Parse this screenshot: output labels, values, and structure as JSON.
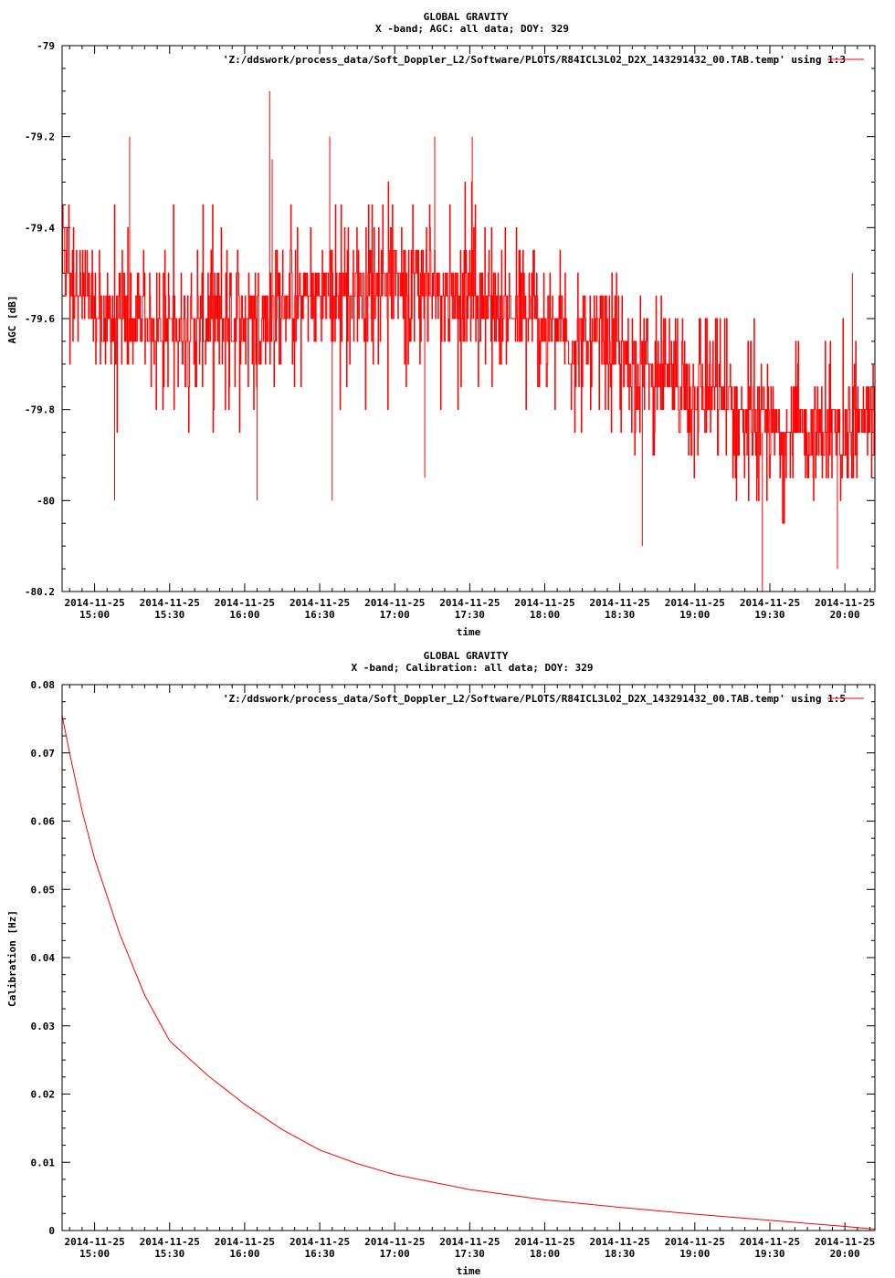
{
  "chart_data": [
    {
      "type": "line",
      "title": "GLOBAL GRAVITY",
      "subtitle": "X -band; AGC: all data; DOY: 329",
      "xlabel": "time",
      "ylabel": "AGC [dB]",
      "ylim": [
        -80.2,
        -79
      ],
      "xlim": [
        "2014-11-25 14:47",
        "2014-11-25 20:12"
      ],
      "yticks": [
        {
          "value": -79,
          "label": "-79"
        },
        {
          "value": -79.2,
          "label": "-79.2"
        },
        {
          "value": -79.4,
          "label": "-79.4"
        },
        {
          "value": -79.6,
          "label": "-79.6"
        },
        {
          "value": -79.8,
          "label": "-79.8"
        },
        {
          "value": -80,
          "label": "-80"
        },
        {
          "value": -80.2,
          "label": "-80.2"
        }
      ],
      "xticks": [
        {
          "value": "2014-11-25 15:00",
          "date": "2014-11-25",
          "time": "15:00"
        },
        {
          "value": "2014-11-25 15:30",
          "date": "2014-11-25",
          "time": "15:30"
        },
        {
          "value": "2014-11-25 16:00",
          "date": "2014-11-25",
          "time": "16:00"
        },
        {
          "value": "2014-11-25 16:30",
          "date": "2014-11-25",
          "time": "16:30"
        },
        {
          "value": "2014-11-25 17:00",
          "date": "2014-11-25",
          "time": "17:00"
        },
        {
          "value": "2014-11-25 17:30",
          "date": "2014-11-25",
          "time": "17:30"
        },
        {
          "value": "2014-11-25 18:00",
          "date": "2014-11-25",
          "time": "18:00"
        },
        {
          "value": "2014-11-25 18:30",
          "date": "2014-11-25",
          "time": "18:30"
        },
        {
          "value": "2014-11-25 19:00",
          "date": "2014-11-25",
          "time": "19:00"
        },
        {
          "value": "2014-11-25 19:30",
          "date": "2014-11-25",
          "time": "19:30"
        },
        {
          "value": "2014-11-25 20:00",
          "date": "2014-11-25",
          "time": "20:00"
        }
      ],
      "legend": "top-right",
      "grid": false,
      "series": [
        {
          "name": "'Z:/ddswork/process_data/Soft_Doppler_L2/Software/PLOTS/R84ICL3L02_D2X_143291432_00.TAB.temp' using 1:3",
          "color": "#ff0000",
          "x": [
            "2014-11-25 14:47",
            "2014-11-25 15:00",
            "2014-11-25 15:30",
            "2014-11-25 16:00",
            "2014-11-25 16:30",
            "2014-11-25 17:00",
            "2014-11-25 17:30",
            "2014-11-25 18:00",
            "2014-11-25 18:30",
            "2014-11-25 19:00",
            "2014-11-25 19:30",
            "2014-11-25 20:00",
            "2014-11-25 20:12"
          ],
          "y": [
            -79.45,
            -79.6,
            -79.62,
            -79.6,
            -79.55,
            -79.5,
            -79.55,
            -79.62,
            -79.68,
            -79.75,
            -79.85,
            -79.85,
            -79.8
          ],
          "y_low": [
            -79.8,
            -79.85,
            -79.85,
            -79.85,
            -79.8,
            -79.8,
            -79.8,
            -79.85,
            -79.9,
            -79.95,
            -80.05,
            -80.05,
            -79.95
          ],
          "y_high": [
            -79.3,
            -79.3,
            -79.35,
            -79.35,
            -79.3,
            -79.3,
            -79.3,
            -79.4,
            -79.5,
            -79.55,
            -79.6,
            -79.6,
            -79.6
          ],
          "spikes": [
            {
              "x": "2014-11-25 14:59",
              "y": -79.5
            },
            {
              "x": "2014-11-25 15:08",
              "y": -80
            },
            {
              "x": "2014-11-25 15:14",
              "y": -79.2
            },
            {
              "x": "2014-11-25 16:05",
              "y": -80
            },
            {
              "x": "2014-11-25 16:10",
              "y": -79.1
            },
            {
              "x": "2014-11-25 16:11",
              "y": -79.25
            },
            {
              "x": "2014-11-25 16:34",
              "y": -79.2
            },
            {
              "x": "2014-11-25 16:35",
              "y": -80
            },
            {
              "x": "2014-11-25 17:12",
              "y": -79.95
            },
            {
              "x": "2014-11-25 17:16",
              "y": -79.2
            },
            {
              "x": "2014-11-25 17:31",
              "y": -79.2
            },
            {
              "x": "2014-11-25 18:39",
              "y": -80.1
            },
            {
              "x": "2014-11-25 19:27",
              "y": -80.2
            },
            {
              "x": "2014-11-25 19:57",
              "y": -80.15
            },
            {
              "x": "2014-11-25 20:03",
              "y": -79.5
            }
          ]
        }
      ]
    },
    {
      "type": "line",
      "title": "GLOBAL GRAVITY",
      "subtitle": "X -band; Calibration: all data; DOY: 329",
      "xlabel": "time",
      "ylabel": "Calibration [Hz]",
      "ylim": [
        0,
        0.08
      ],
      "xlim": [
        "2014-11-25 14:47",
        "2014-11-25 20:12"
      ],
      "yticks": [
        {
          "value": 0,
          "label": "0"
        },
        {
          "value": 0.01,
          "label": "0.01"
        },
        {
          "value": 0.02,
          "label": "0.02"
        },
        {
          "value": 0.03,
          "label": "0.03"
        },
        {
          "value": 0.04,
          "label": "0.04"
        },
        {
          "value": 0.05,
          "label": "0.05"
        },
        {
          "value": 0.06,
          "label": "0.06"
        },
        {
          "value": 0.07,
          "label": "0.07"
        },
        {
          "value": 0.08,
          "label": "0.08"
        }
      ],
      "xticks": [
        {
          "value": "2014-11-25 15:00",
          "date": "2014-11-25",
          "time": "15:00"
        },
        {
          "value": "2014-11-25 15:30",
          "date": "2014-11-25",
          "time": "15:30"
        },
        {
          "value": "2014-11-25 16:00",
          "date": "2014-11-25",
          "time": "16:00"
        },
        {
          "value": "2014-11-25 16:30",
          "date": "2014-11-25",
          "time": "16:30"
        },
        {
          "value": "2014-11-25 17:00",
          "date": "2014-11-25",
          "time": "17:00"
        },
        {
          "value": "2014-11-25 17:30",
          "date": "2014-11-25",
          "time": "17:30"
        },
        {
          "value": "2014-11-25 18:00",
          "date": "2014-11-25",
          "time": "18:00"
        },
        {
          "value": "2014-11-25 18:30",
          "date": "2014-11-25",
          "time": "18:30"
        },
        {
          "value": "2014-11-25 19:00",
          "date": "2014-11-25",
          "time": "19:00"
        },
        {
          "value": "2014-11-25 19:30",
          "date": "2014-11-25",
          "time": "19:30"
        },
        {
          "value": "2014-11-25 20:00",
          "date": "2014-11-25",
          "time": "20:00"
        }
      ],
      "legend": "top-right",
      "grid": false,
      "series": [
        {
          "name": "'Z:/ddswork/process_data/Soft_Doppler_L2/Software/PLOTS/R84ICL3L02_D2X_143291432_00.TAB.temp' using 1:5",
          "color": "#ff0000",
          "x": [
            "2014-11-25 14:47",
            "2014-11-25 14:50",
            "2014-11-25 14:55",
            "2014-11-25 15:00",
            "2014-11-25 15:10",
            "2014-11-25 15:20",
            "2014-11-25 15:30",
            "2014-11-25 15:45",
            "2014-11-25 16:00",
            "2014-11-25 16:15",
            "2014-11-25 16:30",
            "2014-11-25 16:45",
            "2014-11-25 17:00",
            "2014-11-25 17:30",
            "2014-11-25 18:00",
            "2014-11-25 18:30",
            "2014-11-25 19:00",
            "2014-11-25 19:30",
            "2014-11-25 20:00",
            "2014-11-25 20:12"
          ],
          "y": [
            0.0755,
            0.07,
            0.0615,
            0.0545,
            0.0435,
            0.0345,
            0.0278,
            0.0228,
            0.0185,
            0.0148,
            0.0118,
            0.0098,
            0.0082,
            0.006,
            0.0045,
            0.0034,
            0.0024,
            0.0015,
            0.0006,
            0.0002
          ]
        }
      ]
    }
  ]
}
